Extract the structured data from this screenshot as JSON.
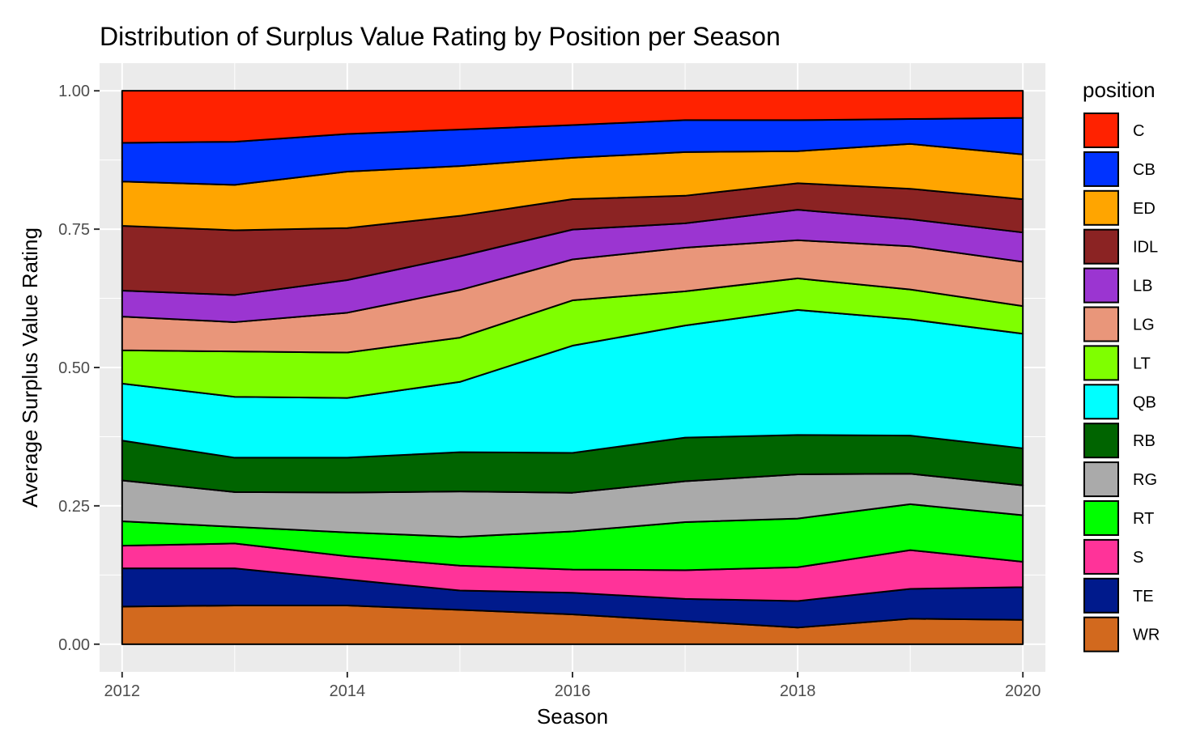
{
  "chart_data": {
    "type": "area",
    "stacked": "fill",
    "title": "Distribution of Surplus Value Rating by Position per Season",
    "xlabel": "Season",
    "ylabel": "Average Surplus Value Rating",
    "x": [
      2012,
      2013,
      2014,
      2015,
      2016,
      2017,
      2018,
      2019,
      2020
    ],
    "xlim": [
      2011.8,
      2020.2
    ],
    "ylim": [
      -0.05,
      1.05
    ],
    "x_ticks": [
      "2012",
      "2014",
      "2016",
      "2018",
      "2020"
    ],
    "y_ticks": [
      "0.00",
      "0.25",
      "0.50",
      "0.75",
      "1.00"
    ],
    "grid": true,
    "legend_title": "position",
    "legend_position": "right",
    "series": [
      {
        "name": "C",
        "color": "#ff2200",
        "values": [
          0.094,
          0.092,
          0.078,
          0.07,
          0.062,
          0.053,
          0.053,
          0.051,
          0.049
        ]
      },
      {
        "name": "CB",
        "color": "#0033ff",
        "values": [
          0.07,
          0.078,
          0.068,
          0.066,
          0.059,
          0.058,
          0.056,
          0.045,
          0.066
        ]
      },
      {
        "name": "ED",
        "color": "#ffa500",
        "values": [
          0.08,
          0.082,
          0.102,
          0.09,
          0.075,
          0.079,
          0.058,
          0.081,
          0.081
        ]
      },
      {
        "name": "IDL",
        "color": "#8b2323",
        "values": [
          0.117,
          0.117,
          0.094,
          0.073,
          0.055,
          0.05,
          0.048,
          0.055,
          0.06
        ]
      },
      {
        "name": "LB",
        "color": "#9b35d1",
        "values": [
          0.047,
          0.049,
          0.059,
          0.061,
          0.054,
          0.044,
          0.055,
          0.049,
          0.053
        ]
      },
      {
        "name": "LG",
        "color": "#e9967a",
        "values": [
          0.061,
          0.053,
          0.072,
          0.086,
          0.074,
          0.079,
          0.069,
          0.078,
          0.08
        ]
      },
      {
        "name": "LT",
        "color": "#7fff00",
        "values": [
          0.06,
          0.082,
          0.082,
          0.08,
          0.082,
          0.062,
          0.057,
          0.054,
          0.05
        ]
      },
      {
        "name": "QB",
        "color": "#00ffff",
        "values": [
          0.103,
          0.11,
          0.108,
          0.127,
          0.194,
          0.203,
          0.226,
          0.21,
          0.207
        ]
      },
      {
        "name": "RB",
        "color": "#006400",
        "values": [
          0.072,
          0.062,
          0.063,
          0.071,
          0.072,
          0.079,
          0.071,
          0.069,
          0.067
        ]
      },
      {
        "name": "RG",
        "color": "#aaaaaa",
        "values": [
          0.074,
          0.063,
          0.072,
          0.082,
          0.07,
          0.074,
          0.08,
          0.055,
          0.054
        ]
      },
      {
        "name": "RT",
        "color": "#00ff00",
        "values": [
          0.044,
          0.03,
          0.043,
          0.052,
          0.069,
          0.087,
          0.088,
          0.083,
          0.084
        ]
      },
      {
        "name": "S",
        "color": "#ff3399",
        "values": [
          0.041,
          0.045,
          0.042,
          0.045,
          0.042,
          0.052,
          0.061,
          0.07,
          0.046
        ]
      },
      {
        "name": "TE",
        "color": "#001a8c",
        "values": [
          0.069,
          0.067,
          0.047,
          0.035,
          0.039,
          0.04,
          0.048,
          0.054,
          0.059
        ]
      },
      {
        "name": "WR",
        "color": "#d2691e",
        "values": [
          0.068,
          0.07,
          0.07,
          0.062,
          0.054,
          0.042,
          0.03,
          0.046,
          0.044
        ]
      }
    ]
  }
}
